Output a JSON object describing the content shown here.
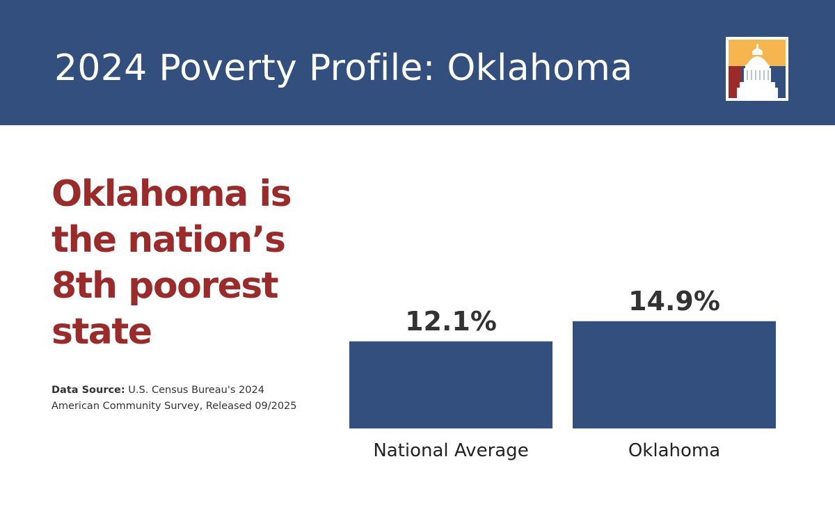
{
  "header": {
    "title": "2024 Poverty Profile: Oklahoma"
  },
  "headline": {
    "lines": [
      "Oklahoma is",
      "the nation’s",
      "8th poorest",
      "state"
    ]
  },
  "source": {
    "label": "Data Source:",
    "text": " U.S. Census Bureau's 2024 American Community Survey, Released 09/2025"
  },
  "colors": {
    "header_bg": "#324f7e",
    "bar": "#324f7e",
    "headline": "#9b2a2a",
    "logo_gold": "#f5b64f",
    "logo_blue": "#324f7e",
    "logo_red": "#9b2a2a"
  },
  "logo": {
    "icon": "capitol-dome-icon"
  },
  "chart_data": {
    "type": "bar",
    "categories": [
      "National Average",
      "Oklahoma"
    ],
    "values": [
      12.1,
      14.9
    ],
    "value_labels": [
      "12.1%",
      "14.9%"
    ],
    "title": "",
    "xlabel": "",
    "ylabel": "",
    "ylim": [
      0,
      20
    ],
    "grid": false
  }
}
